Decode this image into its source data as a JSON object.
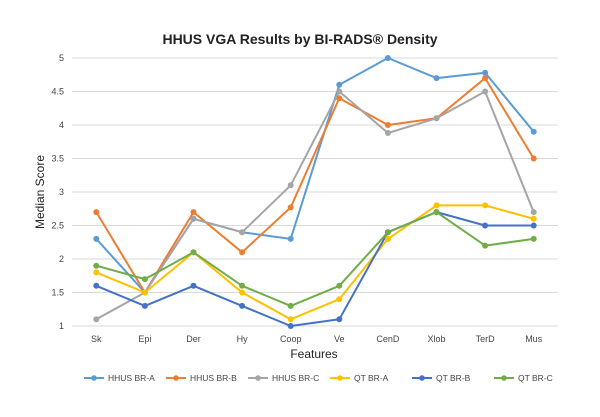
{
  "chart_data": {
    "type": "line",
    "title": "HHUS VGA Results by BI-RADS® Density",
    "xlabel": "Features",
    "ylabel": "Median Score",
    "ylim": [
      1,
      5
    ],
    "yticks": [
      "1",
      "1.5",
      "2",
      "2.5",
      "3",
      "3.5",
      "4",
      "4.5",
      "5"
    ],
    "grid": "horizontal",
    "legend_position": "bottom",
    "categories": [
      "Sk",
      "Epi",
      "Der",
      "Hy",
      "Coop",
      "Ve",
      "CenD",
      "Xlob",
      "TerD",
      "Mus"
    ],
    "series": [
      {
        "name": "HHUS BR-A",
        "color": "#5b9bd5",
        "values": [
          2.3,
          1.5,
          2.6,
          2.4,
          2.3,
          4.6,
          5.0,
          4.7,
          4.78,
          3.9
        ]
      },
      {
        "name": "HHUS BR-B",
        "color": "#ed7d31",
        "values": [
          2.7,
          1.5,
          2.7,
          2.1,
          2.77,
          4.4,
          4.0,
          4.1,
          4.7,
          3.5
        ]
      },
      {
        "name": "HHUS BR-C",
        "color": "#a5a5a5",
        "values": [
          1.1,
          1.5,
          2.6,
          2.4,
          3.1,
          4.5,
          3.88,
          4.1,
          4.5,
          2.7
        ]
      },
      {
        "name": "QT BR-A",
        "color": "#ffc000",
        "values": [
          1.8,
          1.5,
          2.1,
          1.5,
          1.1,
          1.4,
          2.3,
          2.8,
          2.8,
          2.6
        ]
      },
      {
        "name": "QT BR-B",
        "color": "#4472c4",
        "values": [
          1.6,
          1.3,
          1.6,
          1.3,
          1.0,
          1.1,
          2.4,
          2.7,
          2.5,
          2.5
        ]
      },
      {
        "name": "QT BR-C",
        "color": "#70ad47",
        "values": [
          1.9,
          1.7,
          2.1,
          1.6,
          1.3,
          1.6,
          2.4,
          2.7,
          2.2,
          2.3
        ]
      }
    ]
  }
}
